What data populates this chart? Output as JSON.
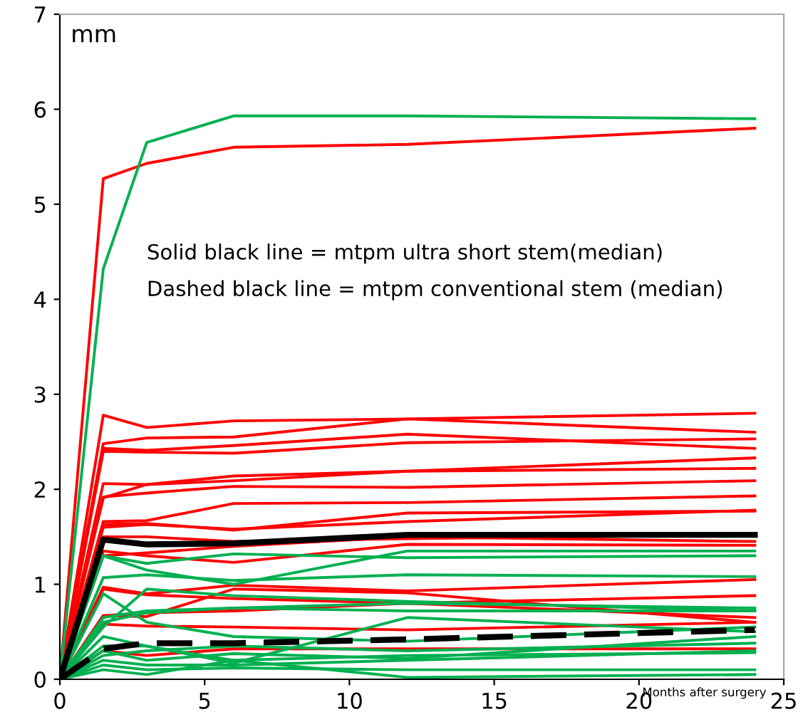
{
  "chart_data": {
    "type": "line",
    "ylabel": "mm",
    "xlabel": "Months after surgery",
    "annotations": [
      "Solid black line = mtpm ultra short stem(median)",
      "Dashed black line = mtpm conventional stem (median)"
    ],
    "x": [
      0,
      1.5,
      3,
      6,
      12,
      24
    ],
    "xlim": [
      0,
      25
    ],
    "xticks": [
      0,
      5,
      10,
      15,
      20,
      25
    ],
    "ylim": [
      0,
      7
    ],
    "yticks": [
      0,
      1,
      2,
      3,
      4,
      5,
      6,
      7
    ],
    "grid": false,
    "legend": false,
    "line_style": "solid",
    "series": [
      {
        "color": "#ff0000",
        "values": [
          0,
          5.27,
          5.43,
          5.6,
          5.63,
          5.8
        ]
      },
      {
        "color": "#ff0000",
        "values": [
          0,
          2.78,
          2.65,
          2.72,
          2.74,
          2.8
        ]
      },
      {
        "color": "#ff0000",
        "values": [
          0,
          2.48,
          2.54,
          2.55,
          2.74,
          2.6
        ]
      },
      {
        "color": "#ff0000",
        "values": [
          0,
          2.43,
          2.41,
          2.46,
          2.58,
          2.43
        ]
      },
      {
        "color": "#ff0000",
        "values": [
          0,
          2.4,
          2.39,
          2.38,
          2.49,
          2.53
        ]
      },
      {
        "color": "#ff0000",
        "values": [
          0,
          2.06,
          2.05,
          2.14,
          2.19,
          2.33
        ]
      },
      {
        "color": "#ff0000",
        "values": [
          0,
          1.92,
          1.96,
          2.03,
          2.02,
          2.09
        ]
      },
      {
        "color": "#ff0000",
        "values": [
          0,
          1.91,
          2.05,
          2.09,
          2.19,
          2.22
        ]
      },
      {
        "color": "#ff0000",
        "values": [
          0,
          1.66,
          1.67,
          1.85,
          1.86,
          1.93
        ]
      },
      {
        "color": "#ff0000",
        "values": [
          0,
          1.63,
          1.64,
          1.57,
          1.75,
          1.77
        ]
      },
      {
        "color": "#ff0000",
        "values": [
          0,
          1.6,
          1.63,
          1.58,
          1.66,
          1.78
        ]
      },
      {
        "color": "#ff0000",
        "values": [
          0,
          1.5,
          1.5,
          1.45,
          1.48,
          1.52
        ]
      },
      {
        "color": "#ff0000",
        "values": [
          0,
          1.35,
          1.3,
          1.23,
          1.42,
          1.41
        ]
      },
      {
        "color": "#ff0000",
        "values": [
          0,
          1.3,
          1.33,
          1.4,
          1.5,
          1.45
        ]
      },
      {
        "color": "#ff0000",
        "values": [
          0,
          0.97,
          0.9,
          0.99,
          0.93,
          1.05
        ]
      },
      {
        "color": "#ff0000",
        "values": [
          0,
          0.95,
          0.89,
          0.85,
          0.8,
          0.88
        ]
      },
      {
        "color": "#ff0000",
        "values": [
          0,
          0.67,
          0.66,
          0.95,
          0.91,
          0.6
        ]
      },
      {
        "color": "#ff0000",
        "values": [
          0,
          0.58,
          0.56,
          0.55,
          0.52,
          0.6
        ]
      },
      {
        "color": "#ff0000",
        "values": [
          0,
          0.3,
          0.25,
          0.32,
          0.32,
          0.32
        ]
      },
      {
        "color": "#ff0000",
        "values": [
          0,
          0.67,
          0.7,
          0.72,
          0.8,
          0.65
        ]
      },
      {
        "color": "#00b050",
        "values": [
          0,
          4.32,
          5.65,
          5.93,
          5.93,
          5.9
        ]
      },
      {
        "color": "#00b050",
        "values": [
          0,
          1.3,
          1.15,
          1.0,
          1.35,
          1.35
        ]
      },
      {
        "color": "#00b050",
        "values": [
          0,
          1.07,
          1.1,
          1.04,
          1.1,
          1.08
        ]
      },
      {
        "color": "#00b050",
        "values": [
          0,
          1.3,
          1.22,
          1.32,
          1.28,
          1.3
        ]
      },
      {
        "color": "#00b050",
        "values": [
          0,
          0.65,
          0.72,
          0.75,
          0.8,
          0.75
        ]
      },
      {
        "color": "#00b050",
        "values": [
          0,
          0.6,
          0.7,
          0.75,
          0.72,
          0.72
        ]
      },
      {
        "color": "#00b050",
        "values": [
          0,
          0.55,
          0.95,
          0.88,
          0.82,
          0.72
        ]
      },
      {
        "color": "#00b050",
        "values": [
          0,
          0.9,
          0.6,
          0.45,
          0.4,
          0.55
        ]
      },
      {
        "color": "#00b050",
        "values": [
          0,
          0.35,
          0.35,
          0.17,
          0.65,
          0.5
        ]
      },
      {
        "color": "#00b050",
        "values": [
          0,
          0.3,
          0.2,
          0.27,
          0.22,
          0.45
        ]
      },
      {
        "color": "#00b050",
        "values": [
          0,
          0.2,
          0.15,
          0.15,
          0.2,
          0.3
        ]
      },
      {
        "color": "#00b050",
        "values": [
          0,
          0.15,
          0.1,
          0.12,
          0.1,
          0.1
        ]
      },
      {
        "color": "#00b050",
        "values": [
          0,
          0.1,
          0.05,
          0.2,
          0.02,
          0.05
        ]
      },
      {
        "color": "#00b050",
        "values": [
          0,
          0.25,
          0.3,
          0.35,
          0.3,
          0.38
        ]
      },
      {
        "color": "#00b050",
        "values": [
          0,
          0.45,
          0.35,
          0.2,
          0.25,
          0.28
        ]
      },
      {
        "color": "#000000",
        "line_style": "solid",
        "values": [
          0,
          1.47,
          1.42,
          1.43,
          1.52,
          1.52
        ]
      },
      {
        "color": "#000000",
        "line_style": "dashed",
        "values": [
          0,
          0.32,
          0.38,
          0.38,
          0.42,
          0.52
        ]
      }
    ]
  }
}
